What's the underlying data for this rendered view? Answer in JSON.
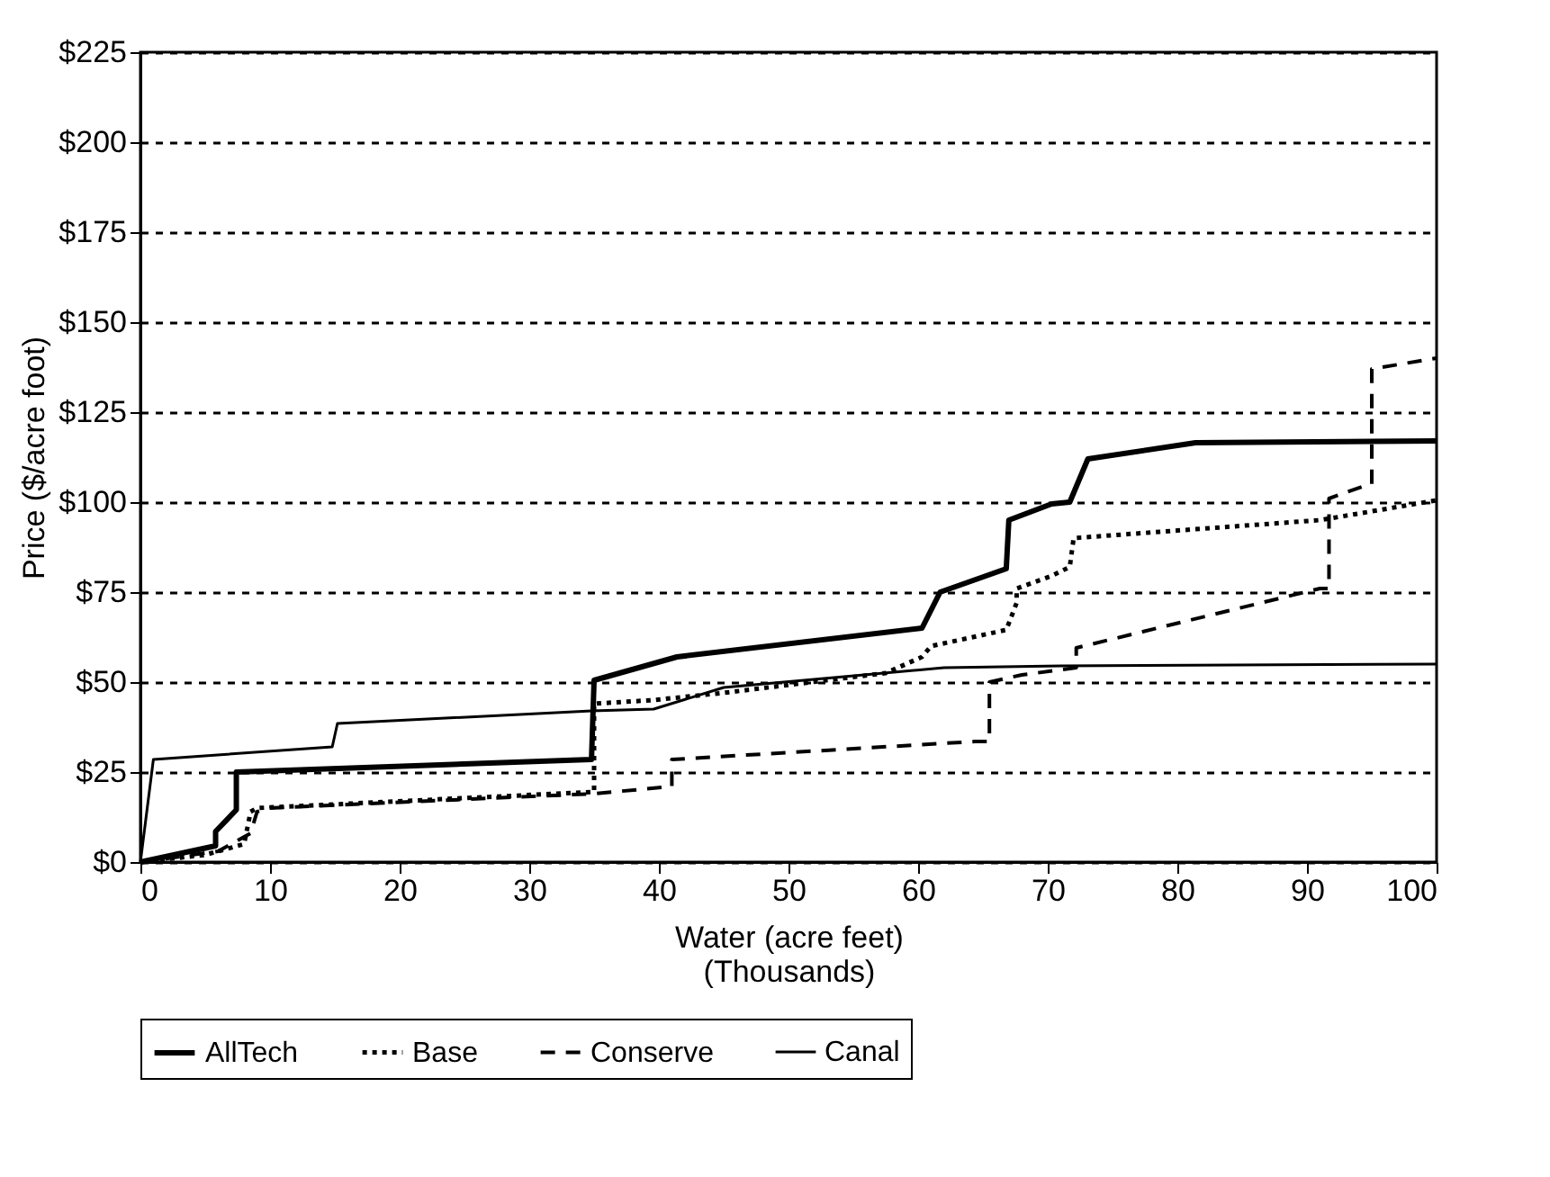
{
  "chart_data": {
    "type": "line",
    "xlabel": "Water (acre feet)\n(Thousands)",
    "ylabel": "Price ($/acre foot)",
    "xlim": [
      0,
      100
    ],
    "xticks": [
      0,
      10,
      20,
      30,
      40,
      50,
      60,
      70,
      80,
      90,
      100
    ],
    "ylim": [
      0,
      225
    ],
    "yticks": [
      {
        "value": 0,
        "label": "$0"
      },
      {
        "value": 25,
        "label": "$25"
      },
      {
        "value": 50,
        "label": "$50"
      },
      {
        "value": 75,
        "label": "$75"
      },
      {
        "value": 100,
        "label": "$100"
      },
      {
        "value": 125,
        "label": "$125"
      },
      {
        "value": 150,
        "label": "$150"
      },
      {
        "value": 175,
        "label": "$175"
      },
      {
        "value": 200,
        "label": "$200"
      },
      {
        "value": 225,
        "label": "$225"
      }
    ],
    "grid": "y",
    "legend": "bottom",
    "marker": "none",
    "series": [
      {
        "name": "AllTech",
        "color": "#000000",
        "line_style": "solid",
        "x": [
          0,
          5.8,
          5.8,
          7.4,
          7.4,
          34.8,
          35,
          41.4,
          60.3,
          61.7,
          66.8,
          67,
          70.3,
          71.7,
          73.1,
          81.4,
          100
        ],
        "values": [
          0,
          4.5,
          8.5,
          14.5,
          25,
          28.5,
          50.5,
          57,
          65,
          75,
          81.5,
          95,
          99.5,
          100,
          112,
          116.5,
          117
        ]
      },
      {
        "name": "Base",
        "color": "#000000",
        "line_style": "dotted",
        "x": [
          0,
          5,
          8,
          8.5,
          9,
          35,
          35,
          39.6,
          45,
          57.5,
          60.3,
          61,
          66.8,
          67.6,
          67.6,
          70.3,
          71.7,
          72,
          91,
          100
        ],
        "values": [
          0,
          2,
          5,
          14,
          15,
          19.5,
          44,
          45,
          47,
          52.5,
          57,
          60,
          64.5,
          72,
          76,
          79.5,
          82,
          90,
          95,
          100.5
        ]
      },
      {
        "name": "Conserve",
        "color": "#000000",
        "line_style": "dashed",
        "x": [
          0,
          6,
          8.5,
          9,
          10,
          35,
          41,
          41,
          64.4,
          65.5,
          65.5,
          68,
          72.2,
          72.2,
          91,
          91.7,
          91.7,
          94.8,
          95,
          95,
          100
        ],
        "values": [
          0,
          3,
          8,
          14,
          15,
          19,
          21,
          28.5,
          33.5,
          33.5,
          50,
          52,
          54,
          59.5,
          76,
          76,
          101,
          105,
          105,
          137,
          140
        ]
      },
      {
        "name": "Canal",
        "color": "#000000",
        "line_style": "solid",
        "x": [
          0,
          1,
          14.8,
          15.2,
          34.8,
          39.6,
          45,
          62,
          71,
          100
        ],
        "values": [
          0,
          28.5,
          32,
          38.5,
          42,
          42.5,
          48.5,
          54,
          54.5,
          55
        ]
      }
    ]
  }
}
